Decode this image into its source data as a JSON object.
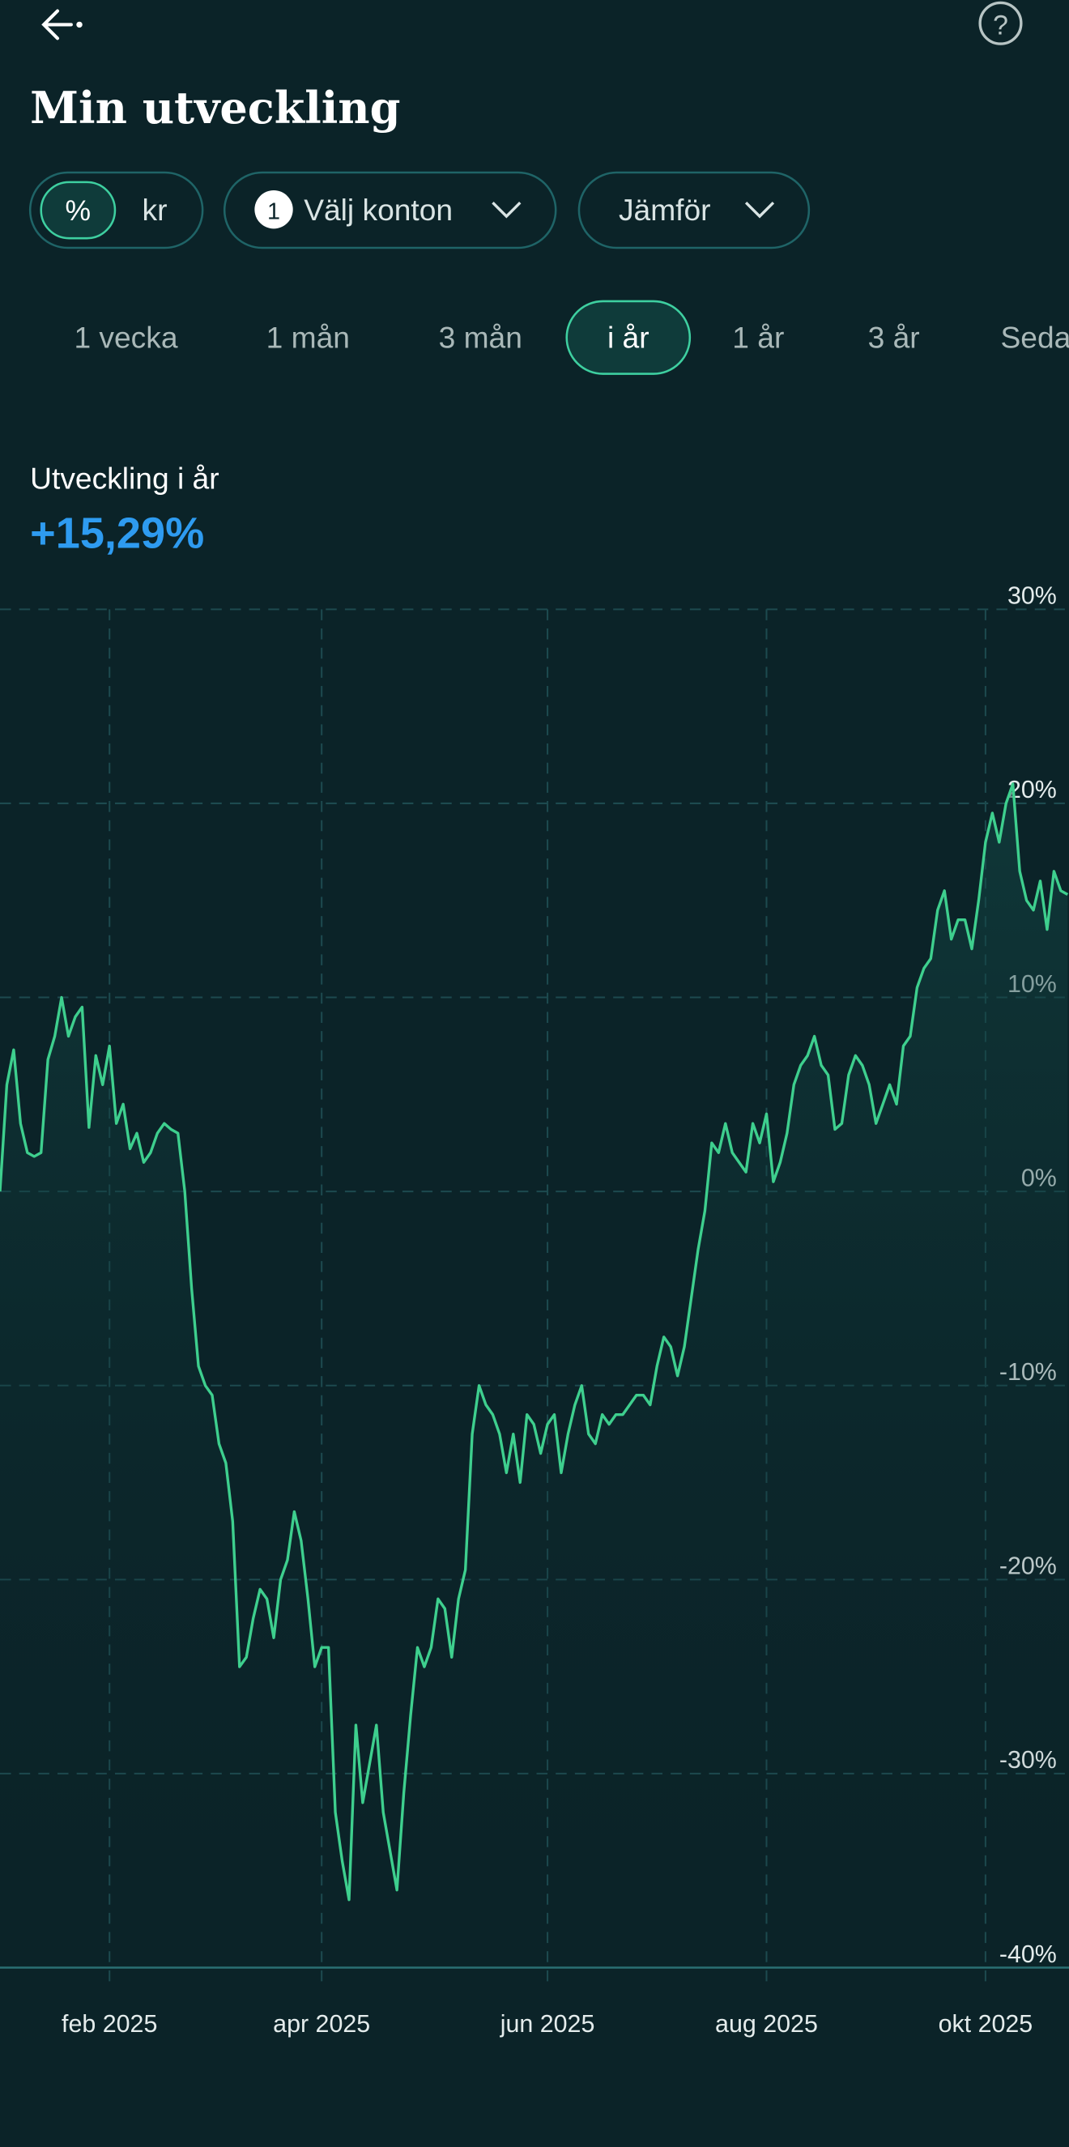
{
  "header": {
    "title": "Min utveckling"
  },
  "unit_toggle": {
    "options": [
      "%",
      "kr"
    ]
  },
  "filters": {
    "accounts_badge": "1",
    "accounts": "Välj konton",
    "compare": "Jämför"
  },
  "periods": {
    "options": [
      "1 vecka",
      "1 mån",
      "3 mån",
      "i år",
      "1 år",
      "3 år",
      "Seda"
    ],
    "selected": 3
  },
  "summary": {
    "label": "Utveckling i år",
    "value": "+15,29%"
  },
  "chart_data": {
    "type": "line",
    "color": "#3ecf8e",
    "grid": true,
    "ylim": [
      -40,
      30
    ],
    "yticks": [
      {
        "value": 30,
        "label": "30%"
      },
      {
        "value": 20,
        "label": "20%"
      },
      {
        "value": 10,
        "label": "10%"
      },
      {
        "value": 0,
        "label": "0%"
      },
      {
        "value": -10,
        "label": "-10%"
      },
      {
        "value": -20,
        "label": "-20%"
      },
      {
        "value": -30,
        "label": "-30%"
      },
      {
        "value": -40,
        "label": "-40%"
      }
    ],
    "categories": [
      null,
      null,
      null,
      null,
      null,
      null,
      null,
      null,
      null,
      null,
      null,
      null,
      null,
      null,
      null,
      null,
      "feb 2025",
      null,
      null,
      null,
      null,
      null,
      null,
      null,
      null,
      null,
      null,
      null,
      null,
      null,
      null,
      null,
      null,
      null,
      null,
      null,
      null,
      null,
      null,
      null,
      null,
      null,
      null,
      null,
      null,
      null,
      null,
      "apr 2025",
      null,
      null,
      null,
      null,
      null,
      null,
      null,
      null,
      null,
      null,
      null,
      null,
      null,
      null,
      null,
      null,
      null,
      null,
      null,
      null,
      null,
      null,
      null,
      null,
      null,
      null,
      null,
      null,
      null,
      null,
      null,
      null,
      "jun 2025",
      null,
      null,
      null,
      null,
      null,
      null,
      null,
      null,
      null,
      null,
      null,
      null,
      null,
      null,
      null,
      null,
      null,
      null,
      null,
      null,
      null,
      null,
      null,
      null,
      null,
      null,
      null,
      null,
      null,
      null,
      null,
      "aug 2025",
      null,
      null,
      null,
      null,
      null,
      null,
      null,
      null,
      null,
      null,
      null,
      null,
      null,
      null,
      null,
      null,
      null,
      null,
      null,
      null,
      null,
      null,
      null,
      null,
      null,
      null,
      null,
      null,
      null,
      null,
      null,
      "okt 2025",
      null,
      null,
      null,
      null,
      null,
      null,
      null,
      null,
      null,
      null,
      null,
      null
    ],
    "values": [
      0,
      5.5,
      7.3,
      3.5,
      2.0,
      1.8,
      2.0,
      6.8,
      8.0,
      10.0,
      8.0,
      9.0,
      9.5,
      3.3,
      7.0,
      5.5,
      7.5,
      3.5,
      4.5,
      2.2,
      3.0,
      1.5,
      2.0,
      3.0,
      3.5,
      3.2,
      3.0,
      0.0,
      -5,
      -9,
      -10,
      -10.5,
      -13,
      -14,
      -17,
      -24.5,
      -24,
      -22,
      -20.5,
      -21,
      -23,
      -20,
      -19,
      -16.5,
      -18,
      -21,
      -24.5,
      -23.5,
      -23.5,
      -32,
      -34.5,
      -36.5,
      -27.5,
      -31.5,
      -29.5,
      -27.5,
      -32,
      -34,
      -36,
      -31,
      -27,
      -23.5,
      -24.5,
      -23.5,
      -21,
      -21.5,
      -24,
      -21,
      -19.5,
      -12.5,
      -10,
      -11,
      -11.5,
      -12.5,
      -14.5,
      -12.5,
      -15,
      -11.5,
      -12,
      -13.5,
      -12,
      -11.5,
      -14.5,
      -12.5,
      -11,
      -10,
      -12.5,
      -13,
      -11.5,
      -12,
      -11.5,
      -11.5,
      -11,
      -10.5,
      -10.5,
      -11,
      -9,
      -7.5,
      -8,
      -9.5,
      -8,
      -5.5,
      -3,
      -1,
      2.5,
      2.0,
      3.5,
      2.0,
      1.5,
      1.0,
      3.5,
      2.5,
      4.0,
      0.5,
      1.5,
      3.0,
      5.5,
      6.5,
      7.0,
      8.0,
      6.5,
      6.0,
      3.2,
      3.5,
      6.0,
      7.0,
      6.5,
      5.5,
      3.5,
      4.5,
      5.5,
      4.5,
      7.5,
      8.0,
      10.5,
      11.5,
      12.0,
      14.5,
      15.5,
      13.0,
      14.0,
      14.0,
      12.5,
      15.0,
      18.0,
      19.5,
      18.0,
      20.0,
      21.0,
      16.5,
      15.0,
      14.5,
      16.0,
      13.5,
      16.5,
      15.5,
      15.3
    ]
  }
}
